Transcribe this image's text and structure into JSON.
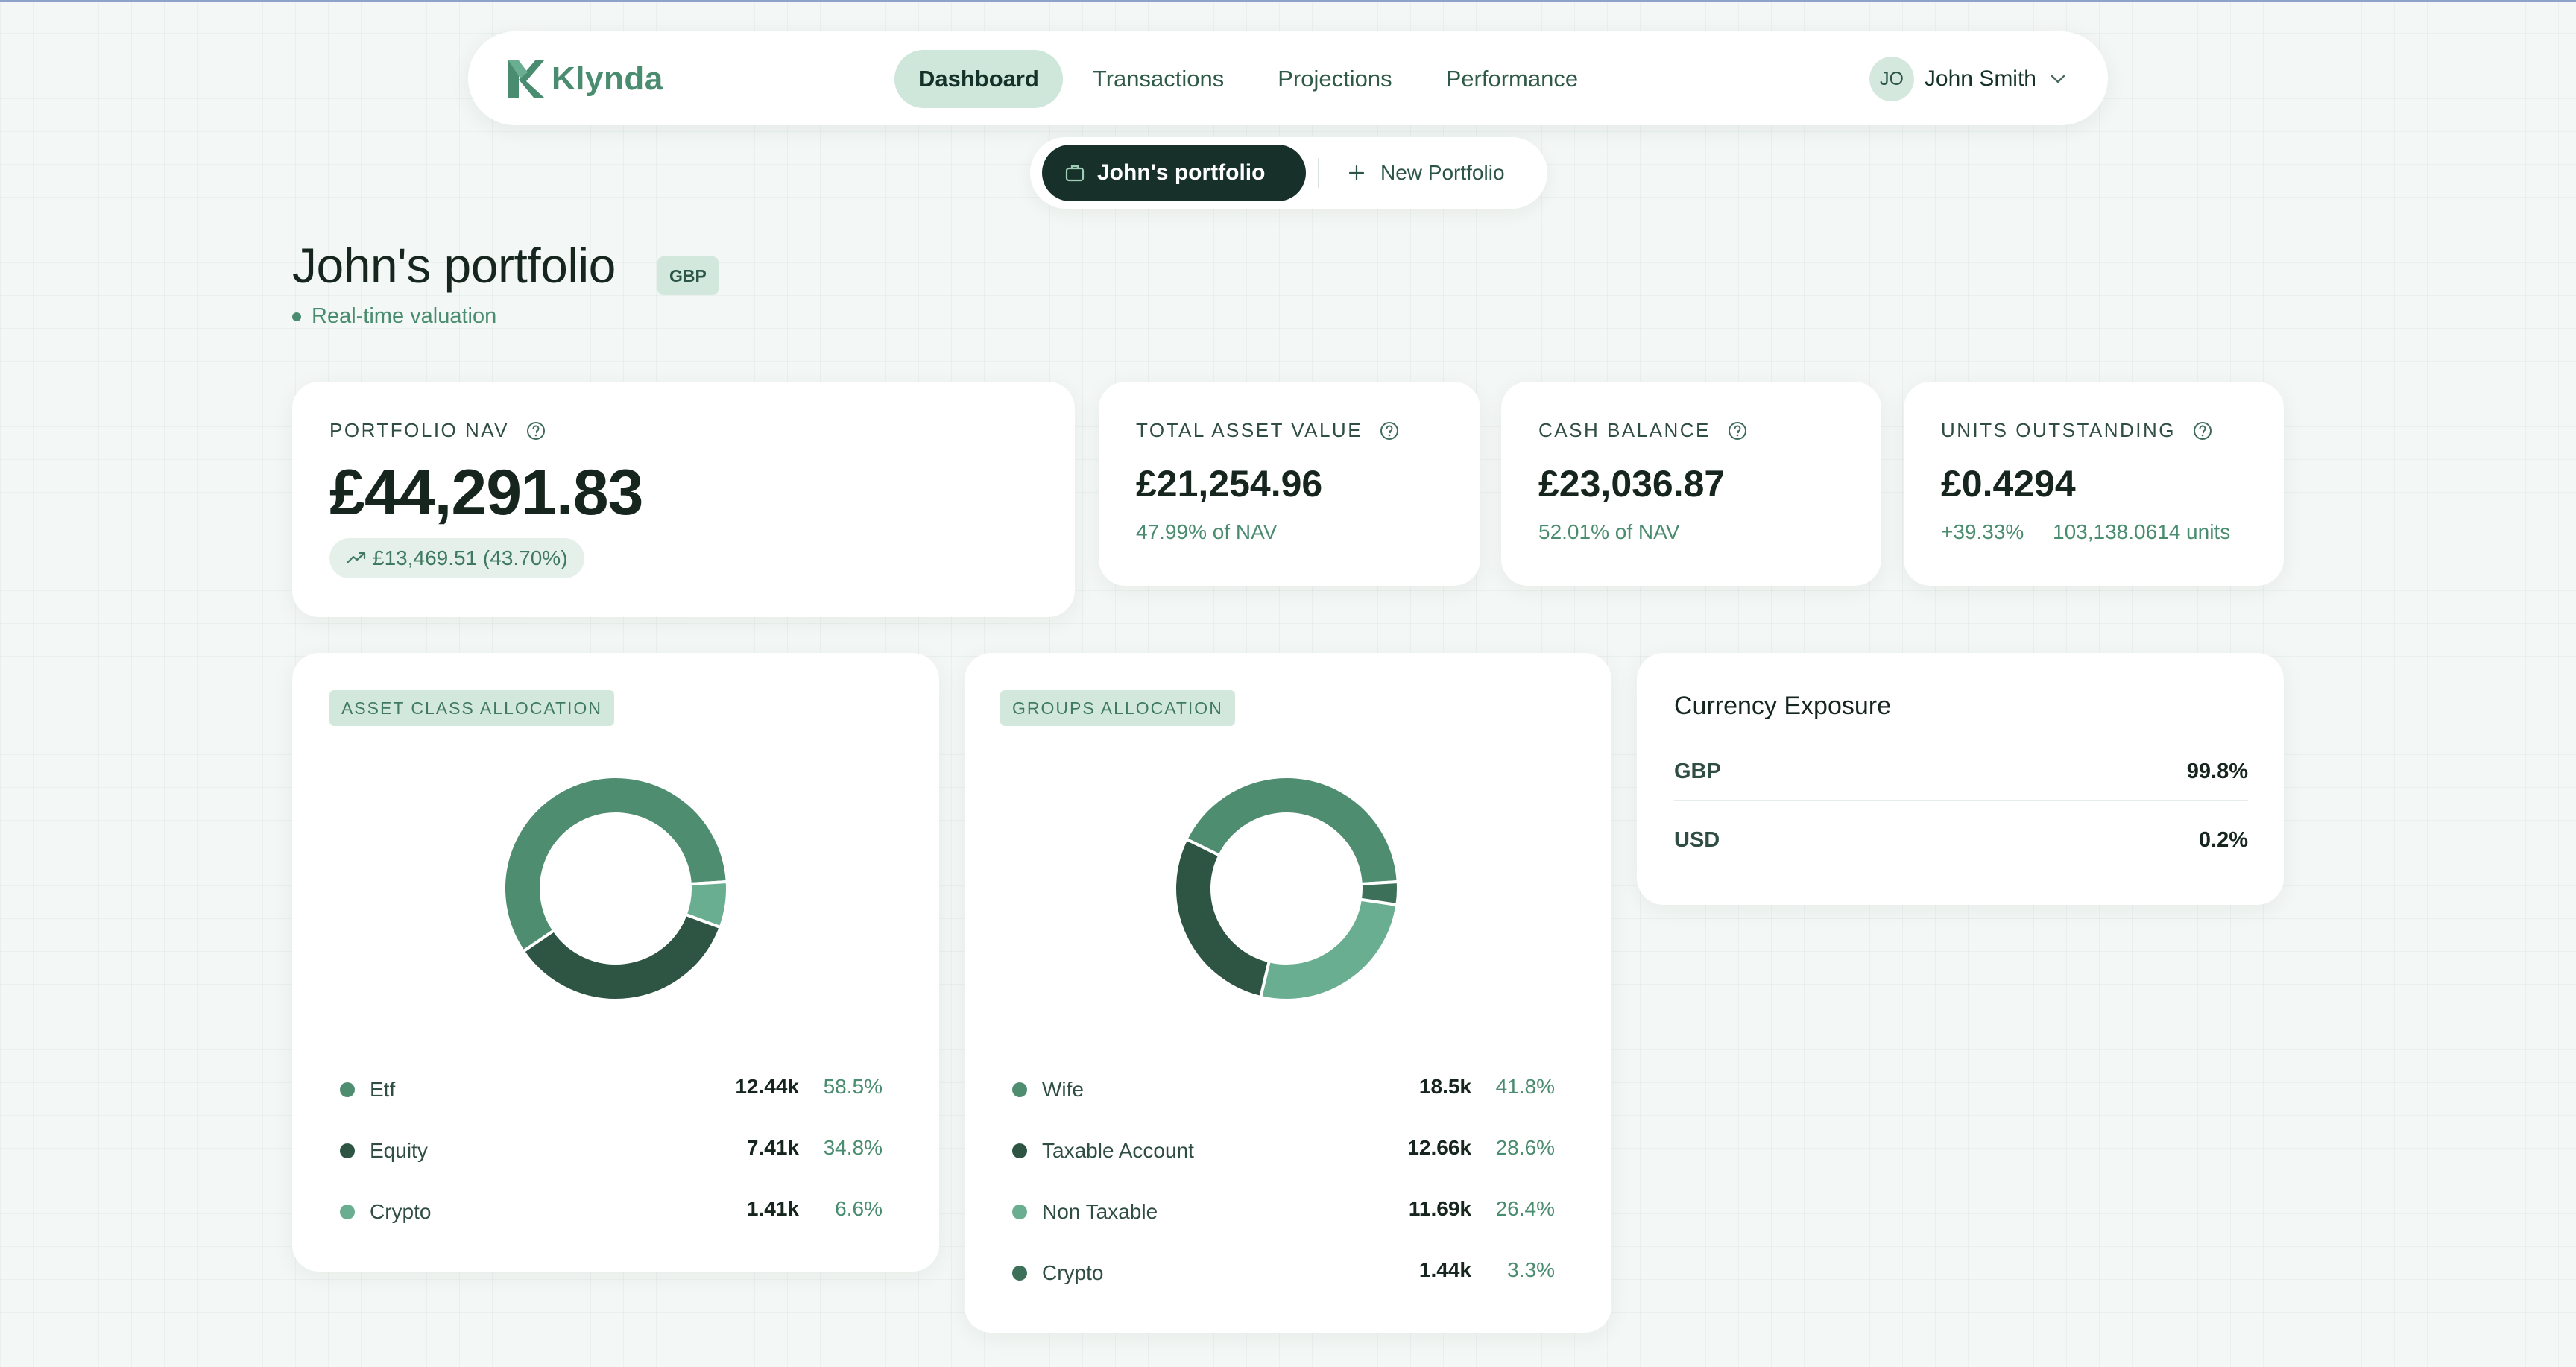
{
  "nav": {
    "brand": "Klynda",
    "links": [
      "Dashboard",
      "Transactions",
      "Projections",
      "Performance"
    ],
    "active_index": 0,
    "user": {
      "initials": "JO",
      "name": "John Smith"
    }
  },
  "switcher": {
    "current": "John's portfolio",
    "new": "New Portfolio"
  },
  "header": {
    "title": "John's portfolio",
    "currency_badge": "GBP",
    "status": "Real-time valuation"
  },
  "kpis": {
    "nav": {
      "label": "PORTFOLIO NAV",
      "value": "£44,291.83",
      "change": "£13,469.51 (43.70%)"
    },
    "total_asset": {
      "label": "TOTAL ASSET VALUE",
      "value": "£21,254.96",
      "sub": "47.99% of NAV"
    },
    "cash": {
      "label": "CASH BALANCE",
      "value": "£23,036.87",
      "sub": "52.01% of NAV"
    },
    "units": {
      "label": "UNITS OUTSTANDING",
      "value": "£0.4294",
      "change": "+39.33%",
      "units": "103,138.0614 units"
    }
  },
  "asset_allocation": {
    "title": "ASSET CLASS ALLOCATION",
    "items": [
      {
        "name": "Etf",
        "value": "12.44k",
        "pct": "58.5%",
        "share": 58.5,
        "color": "#4f8d70"
      },
      {
        "name": "Equity",
        "value": "7.41k",
        "pct": "34.8%",
        "share": 34.8,
        "color": "#2e5544"
      },
      {
        "name": "Crypto",
        "value": "1.41k",
        "pct": "6.6%",
        "share": 6.6,
        "color": "#6aae91"
      }
    ]
  },
  "groups_allocation": {
    "title": "GROUPS ALLOCATION",
    "items": [
      {
        "name": "Wife",
        "value": "18.5k",
        "pct": "41.8%",
        "share": 41.8,
        "color": "#4f8d70"
      },
      {
        "name": "Taxable Account",
        "value": "12.66k",
        "pct": "28.6%",
        "share": 28.6,
        "color": "#2e5544"
      },
      {
        "name": "Non Taxable",
        "value": "11.69k",
        "pct": "26.4%",
        "share": 26.4,
        "color": "#6aae91"
      },
      {
        "name": "Crypto",
        "value": "1.44k",
        "pct": "3.3%",
        "share": 3.3,
        "color": "#3c7058"
      }
    ]
  },
  "currency": {
    "title": "Currency Exposure",
    "rows": [
      {
        "code": "GBP",
        "pct": "99.8%"
      },
      {
        "code": "USD",
        "pct": "0.2%"
      }
    ]
  }
}
